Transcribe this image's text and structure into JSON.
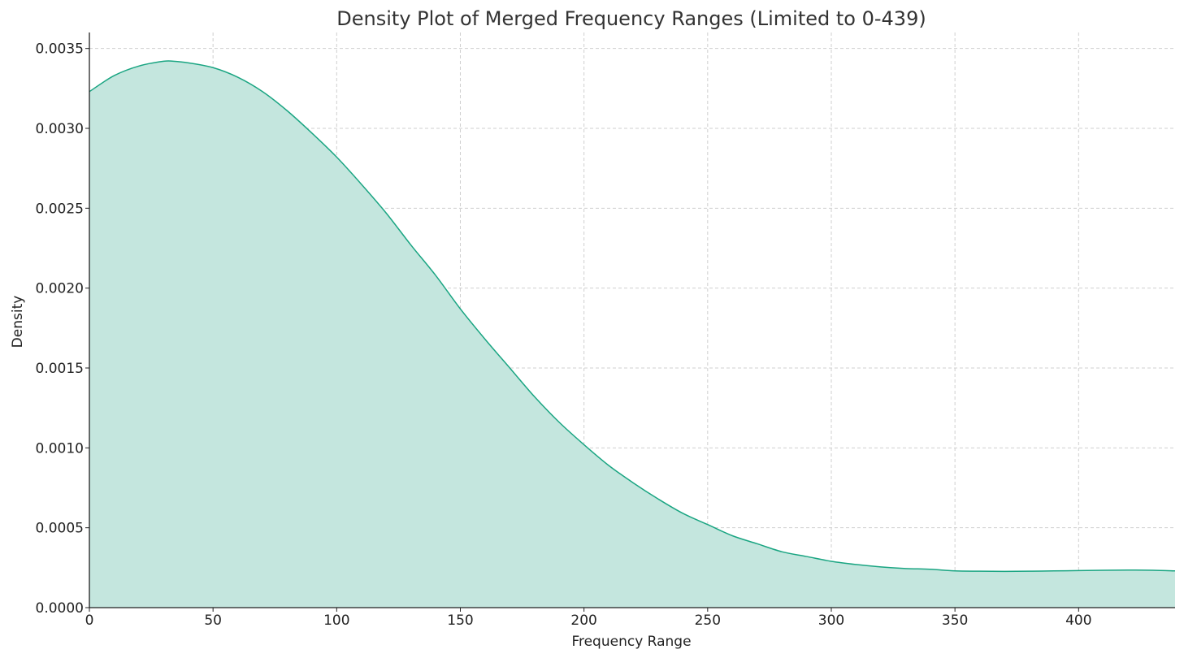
{
  "colors": {
    "line": "#1aa582",
    "fill": "#c4e6de",
    "grid": "#cfcfcf",
    "axis": "#222222",
    "title": "#333333"
  },
  "chart_data": {
    "type": "area",
    "title": "Density Plot of Merged Frequency Ranges (Limited to 0-439)",
    "xlabel": "Frequency Range",
    "ylabel": "Density",
    "xlim": [
      0,
      439
    ],
    "ylim": [
      0,
      0.0036
    ],
    "grid": true,
    "legend": "none",
    "xticks": [
      0,
      50,
      100,
      150,
      200,
      250,
      300,
      350,
      400
    ],
    "xtick_labels": [
      "0",
      "50",
      "100",
      "150",
      "200",
      "250",
      "300",
      "350",
      "400"
    ],
    "yticks": [
      0,
      0.0005,
      0.001,
      0.0015,
      0.002,
      0.0025,
      0.003,
      0.0035
    ],
    "ytick_labels": [
      "0.0000",
      "0.0005",
      "0.0010",
      "0.0015",
      "0.0020",
      "0.0025",
      "0.0030",
      "0.0035"
    ],
    "series": [
      {
        "x": [
          0,
          10,
          20,
          30,
          34,
          40,
          50,
          60,
          70,
          80,
          90,
          100,
          110,
          120,
          130,
          140,
          150,
          160,
          170,
          180,
          190,
          200,
          210,
          220,
          230,
          240,
          250,
          260,
          270,
          280,
          290,
          300,
          310,
          320,
          330,
          340,
          350,
          360,
          370,
          380,
          390,
          400,
          410,
          420,
          430,
          439
        ],
        "y": [
          0.00323,
          0.00333,
          0.00339,
          0.00342,
          0.00342,
          0.00341,
          0.00338,
          0.00332,
          0.00323,
          0.00311,
          0.00297,
          0.00282,
          0.00265,
          0.00247,
          0.00227,
          0.00208,
          0.00187,
          0.00168,
          0.0015,
          0.00132,
          0.00116,
          0.00102,
          0.00089,
          0.00078,
          0.00068,
          0.00059,
          0.00052,
          0.00045,
          0.0004,
          0.00035,
          0.00032,
          0.00029,
          0.00027,
          0.000255,
          0.000245,
          0.00024,
          0.00023,
          0.000228,
          0.000227,
          0.000228,
          0.00023,
          0.000232,
          0.000234,
          0.000235,
          0.000234,
          0.00023
        ]
      }
    ]
  }
}
